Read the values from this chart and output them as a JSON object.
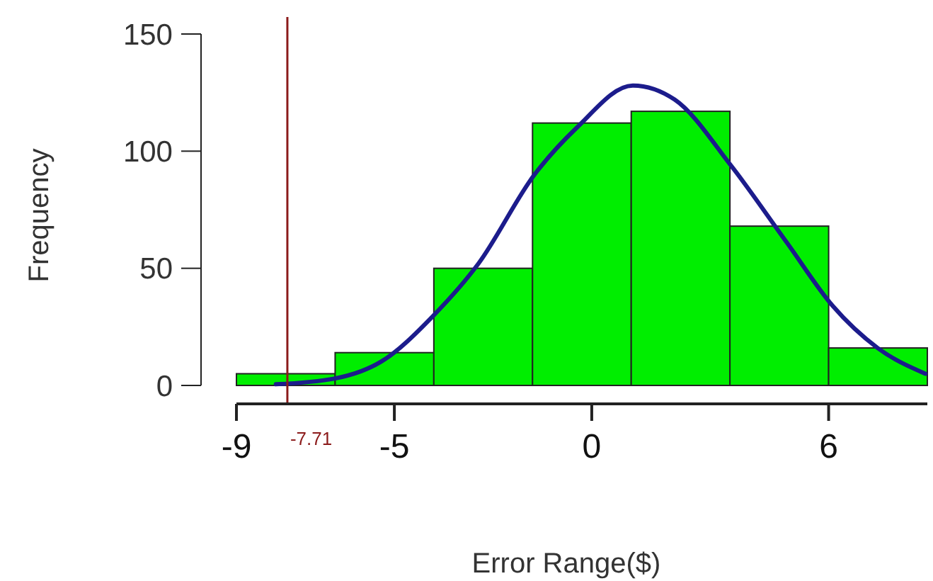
{
  "chart_data": {
    "type": "histogram",
    "xlabel": "Error Range($)",
    "ylabel": "Frequency",
    "bins": [
      -9,
      -6.5,
      -4,
      -1.5,
      1,
      3.5,
      6,
      8.5
    ],
    "values": [
      5,
      14,
      50,
      112,
      117,
      68,
      16
    ],
    "color": "#00ee00",
    "series": [
      {
        "type": "line",
        "color": "#1c1c8c",
        "x": [
          -8.0,
          -6.5,
          -5.35,
          -4.0,
          -2.87,
          -1.45,
          -0.38,
          1.04,
          2.1,
          3.52,
          4.94,
          6.1,
          7.24,
          8.45
        ],
        "values": [
          0.5,
          3,
          10,
          30,
          52,
          90,
          110,
          128,
          122,
          94,
          61,
          34,
          16,
          5
        ]
      }
    ],
    "xlim": [
      -9,
      8.5
    ],
    "xticks": [
      -9,
      -5,
      0,
      6
    ],
    "ylim": [
      0,
      150
    ],
    "yticks": [
      0,
      50,
      100,
      150
    ],
    "ref_lines": [
      {
        "axis": "x",
        "value": -7.71,
        "label": "-7.71",
        "color": "#8b1a1a"
      }
    ],
    "grid": false,
    "legend": false
  }
}
